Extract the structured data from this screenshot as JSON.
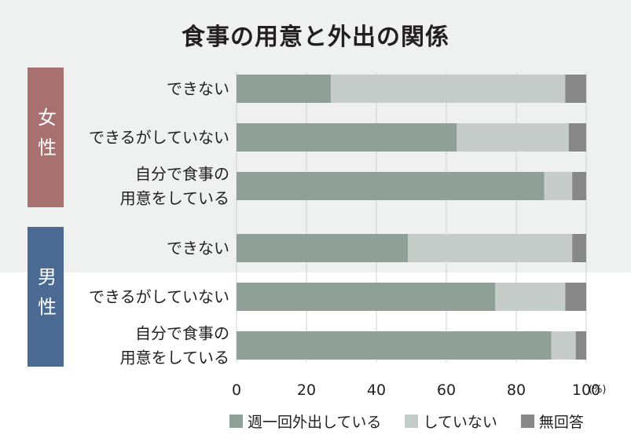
{
  "title": "食事の用意と外出の関係",
  "groups": [
    {
      "label": "女性",
      "color": "#a8716f"
    },
    {
      "label": "男性",
      "color": "#4a6a94"
    }
  ],
  "unit": "(%)",
  "chart_data": {
    "type": "bar",
    "orientation": "horizontal",
    "stacked": true,
    "title": "食事の用意と外出の関係",
    "categories": [
      {
        "group": "女性",
        "label": [
          "できない"
        ]
      },
      {
        "group": "女性",
        "label": [
          "できるがしていない"
        ]
      },
      {
        "group": "女性",
        "label": [
          "自分で食事の",
          "用意をしている"
        ]
      },
      {
        "group": "男性",
        "label": [
          "できない"
        ]
      },
      {
        "group": "男性",
        "label": [
          "できるがしていない"
        ]
      },
      {
        "group": "男性",
        "label": [
          "自分で食事の",
          "用意をしている"
        ]
      }
    ],
    "series": [
      {
        "name": "週一回外出している",
        "color": "#8fa098",
        "values": [
          27,
          63,
          88,
          49,
          74,
          90
        ]
      },
      {
        "name": "していない",
        "color": "#c6ccc9",
        "values": [
          67,
          32,
          8,
          47,
          20,
          7
        ]
      },
      {
        "name": "無回答",
        "color": "#878787",
        "values": [
          6,
          5,
          4,
          4,
          6,
          3
        ]
      }
    ],
    "xlim": [
      0,
      100
    ],
    "xticks": [
      0,
      20,
      40,
      60,
      80,
      100
    ],
    "grid": true,
    "legend_position": "bottom"
  }
}
